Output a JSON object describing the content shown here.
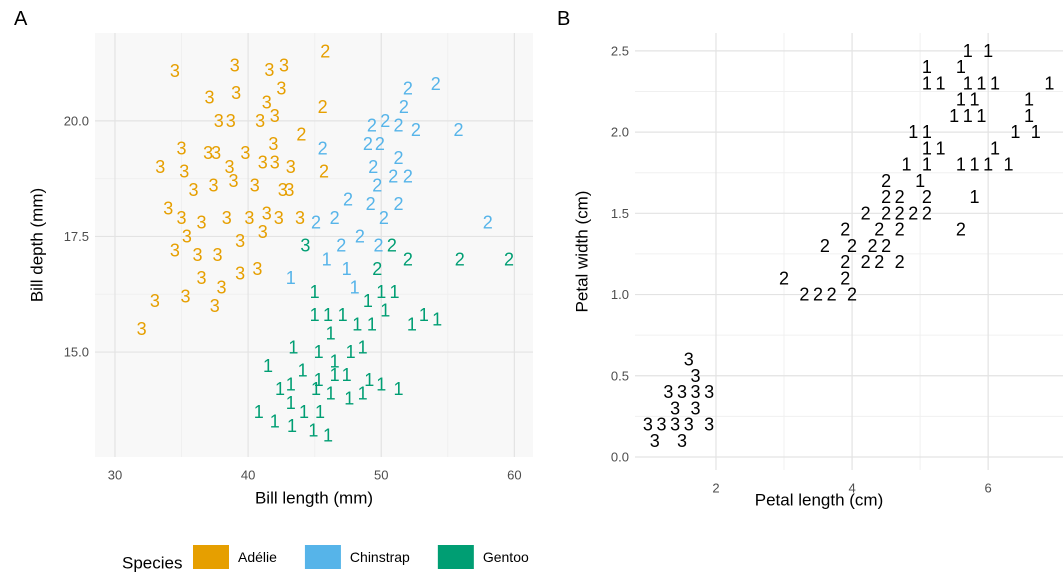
{
  "chart_data": [
    {
      "type": "scatter",
      "tag": "A",
      "xlabel": "Bill length (mm)",
      "ylabel": "Bill depth (mm)",
      "xlim": [
        28.5,
        61.4
      ],
      "ylim": [
        12.73,
        21.9
      ],
      "xticks": [
        30,
        40,
        50,
        60
      ],
      "yticks": [
        {
          "value": 15,
          "label": "15.0"
        },
        17.5,
        {
          "value": 20,
          "label": "20.0"
        }
      ],
      "grid": true,
      "legend_title": "Species",
      "legend": "bottom",
      "series": [
        {
          "name": "Adélie",
          "color": "#E69F00",
          "x": [
            34.5,
            39.0,
            41.6,
            42.7,
            45.8,
            42.5,
            37.1,
            39.1,
            45.6,
            41.4,
            42.0,
            37.8,
            38.7,
            40.9,
            44.0,
            35.0,
            37.0,
            37.6,
            39.8,
            41.9,
            33.4,
            35.2,
            38.6,
            41.1,
            42.0,
            43.2,
            45.7,
            35.9,
            37.4,
            38.9,
            40.5,
            42.6,
            43.1,
            34.0,
            35.0,
            36.5,
            38.4,
            40.1,
            41.4,
            42.3,
            43.9,
            35.4,
            34.5,
            39.4,
            41.1,
            36.2,
            37.7,
            40.7,
            39.4,
            36.5,
            38.0,
            35.3,
            37.5,
            33.0,
            32.0
          ],
          "y": [
            21.08,
            21.2,
            21.1,
            21.2,
            21.5,
            20.7,
            20.5,
            20.6,
            20.3,
            20.4,
            20.1,
            20.0,
            20.0,
            20.0,
            19.7,
            19.4,
            19.3,
            19.3,
            19.3,
            19.5,
            19.0,
            18.9,
            19.0,
            19.1,
            19.1,
            19.0,
            18.9,
            18.5,
            18.6,
            18.7,
            18.6,
            18.5,
            18.5,
            18.1,
            17.9,
            17.8,
            17.9,
            17.9,
            18.0,
            17.9,
            17.9,
            17.5,
            17.2,
            17.4,
            17.6,
            17.1,
            17.1,
            16.8,
            16.7,
            16.6,
            16.4,
            16.2,
            16.0,
            16.1,
            15.5
          ],
          "labels": [
            "3",
            "3",
            "3",
            "3",
            "2",
            "3",
            "3",
            "3",
            "2",
            "3",
            "3",
            "3",
            "3",
            "3",
            "2",
            "3",
            "3",
            "3",
            "3",
            "3",
            "3",
            "3",
            "3",
            "3",
            "3",
            "3",
            "2",
            "3",
            "3",
            "3",
            "3",
            "3",
            "3",
            "3",
            "3",
            "3",
            "3",
            "3",
            "3",
            "3",
            "3",
            "3",
            "3",
            "3",
            "3",
            "3",
            "3",
            "3",
            "3",
            "3",
            "3",
            "3",
            "3",
            "3",
            "3"
          ]
        },
        {
          "name": "Chinstrap",
          "color": "#56B4E9",
          "x": [
            52.0,
            54.1,
            51.7,
            49.3,
            50.3,
            51.3,
            52.6,
            55.8,
            49.0,
            49.9,
            45.6,
            51.3,
            49.4,
            50.9,
            52.0,
            49.7,
            47.5,
            49.2,
            51.3,
            46.5,
            45.1,
            50.2,
            58.0,
            48.4,
            47.0,
            49.8,
            45.9,
            43.2,
            47.4,
            48.0
          ],
          "y": [
            20.7,
            20.8,
            20.3,
            19.9,
            20.0,
            19.9,
            19.8,
            19.8,
            19.5,
            19.5,
            19.4,
            19.2,
            19.0,
            18.8,
            18.8,
            18.6,
            18.3,
            18.2,
            18.2,
            17.9,
            17.8,
            17.9,
            17.8,
            17.5,
            17.3,
            17.3,
            17.0,
            16.6,
            16.8,
            16.4
          ],
          "labels": [
            "2",
            "2",
            "2",
            "2",
            "2",
            "2",
            "2",
            "2",
            "2",
            "2",
            "2",
            "2",
            "2",
            "2",
            "2",
            "2",
            "2",
            "2",
            "2",
            "2",
            "2",
            "2",
            "2",
            "2",
            "2",
            "2",
            "1",
            "1",
            "1",
            "1"
          ]
        },
        {
          "name": "Gentoo",
          "color": "#009E73",
          "x": [
            44.3,
            50.8,
            52.0,
            55.9,
            59.6,
            49.7,
            45.0,
            50.0,
            51.0,
            49.0,
            45.0,
            46.0,
            47.1,
            50.3,
            53.2,
            54.2,
            52.3,
            48.2,
            49.3,
            46.2,
            43.4,
            45.3,
            47.7,
            48.6,
            46.5,
            41.5,
            44.1,
            45.3,
            46.5,
            47.4,
            49.1,
            42.4,
            43.2,
            45.1,
            46.2,
            47.6,
            48.6,
            50.0,
            51.3,
            43.2,
            45.4,
            40.8,
            42.0,
            43.3,
            44.9,
            46.0,
            44.2
          ],
          "y": [
            17.3,
            17.3,
            17.0,
            17.0,
            17.0,
            16.8,
            16.3,
            16.3,
            16.3,
            16.1,
            15.8,
            15.8,
            15.8,
            15.9,
            15.8,
            15.7,
            15.6,
            15.6,
            15.6,
            15.4,
            15.1,
            15.0,
            15.0,
            15.1,
            14.8,
            14.7,
            14.6,
            14.4,
            14.5,
            14.5,
            14.4,
            14.2,
            14.3,
            14.2,
            14.1,
            14.0,
            14.1,
            14.3,
            14.2,
            13.9,
            13.7,
            13.7,
            13.5,
            13.4,
            13.3,
            13.2,
            13.7
          ],
          "labels": [
            "3",
            "2",
            "2",
            "2",
            "2",
            "2",
            "1",
            "1",
            "1",
            "1",
            "1",
            "1",
            "1",
            "1",
            "1",
            "1",
            "1",
            "1",
            "1",
            "1",
            "1",
            "1",
            "1",
            "1",
            "1",
            "1",
            "1",
            "1",
            "1",
            "1",
            "1",
            "1",
            "1",
            "1",
            "1",
            "1",
            "1",
            "1",
            "1",
            "1",
            "1",
            "1",
            "1",
            "1",
            "1",
            "1",
            "1"
          ]
        }
      ]
    },
    {
      "type": "scatter",
      "tag": "B",
      "xlabel": "Petal length (cm)",
      "ylabel": "Petal width (cm)",
      "xlim": [
        0.81,
        7.1
      ],
      "ylim": [
        -0.08,
        2.61
      ],
      "xticks": [
        2,
        4,
        6
      ],
      "yticks": [
        {
          "value": 0,
          "label": "0.0"
        },
        0.5,
        {
          "value": 1,
          "label": "1.0"
        },
        1.5,
        {
          "value": 2,
          "label": "2.0"
        },
        2.5
      ],
      "grid": true,
      "series": [
        {
          "color": "#000000",
          "x": [
            5.7,
            6.0,
            5.1,
            5.6,
            5.1,
            5.3,
            5.7,
            5.9,
            6.1,
            6.9,
            5.6,
            5.8,
            6.6,
            5.5,
            5.7,
            5.9,
            6.6,
            4.9,
            5.1,
            6.4,
            6.7,
            5.1,
            5.3,
            6.1,
            4.8,
            5.1,
            5.6,
            5.8,
            6.0,
            6.3,
            5.0,
            5.8,
            4.5,
            4.5,
            4.7,
            5.1,
            4.2,
            4.5,
            4.7,
            4.9,
            5.1,
            3.9,
            4.4,
            4.7,
            5.6,
            3.6,
            4.0,
            4.3,
            4.5,
            3.9,
            4.2,
            4.4,
            4.7,
            3.9,
            3.0,
            3.3,
            3.5,
            3.7,
            4.0,
            1.6,
            1.7,
            1.3,
            1.5,
            1.7,
            1.9,
            1.4,
            1.7,
            1.0,
            1.2,
            1.4,
            1.6,
            1.9,
            1.1,
            1.5
          ],
          "y": [
            2.5,
            2.5,
            2.4,
            2.4,
            2.3,
            2.3,
            2.3,
            2.3,
            2.3,
            2.3,
            2.2,
            2.2,
            2.2,
            2.1,
            2.1,
            2.1,
            2.1,
            2.0,
            2.0,
            2.0,
            2.0,
            1.9,
            1.9,
            1.9,
            1.8,
            1.8,
            1.8,
            1.8,
            1.8,
            1.8,
            1.7,
            1.6,
            1.7,
            1.6,
            1.6,
            1.6,
            1.5,
            1.5,
            1.5,
            1.5,
            1.5,
            1.4,
            1.4,
            1.4,
            1.4,
            1.3,
            1.3,
            1.3,
            1.3,
            1.2,
            1.2,
            1.2,
            1.2,
            1.1,
            1.1,
            1.0,
            1.0,
            1.0,
            1.0,
            0.6,
            0.5,
            0.4,
            0.4,
            0.4,
            0.4,
            0.3,
            0.3,
            0.2,
            0.2,
            0.2,
            0.2,
            0.2,
            0.1,
            0.1
          ],
          "labels": [
            "1",
            "1",
            "1",
            "1",
            "1",
            "1",
            "1",
            "1",
            "1",
            "1",
            "1",
            "1",
            "1",
            "1",
            "1",
            "1",
            "1",
            "1",
            "1",
            "1",
            "1",
            "1",
            "1",
            "1",
            "1",
            "1",
            "1",
            "1",
            "1",
            "1",
            "1",
            "1",
            "2",
            "2",
            "2",
            "2",
            "2",
            "2",
            "2",
            "2",
            "2",
            "2",
            "2",
            "2",
            "2",
            "2",
            "2",
            "2",
            "2",
            "2",
            "2",
            "2",
            "2",
            "2",
            "2",
            "2",
            "2",
            "2",
            "2",
            "3",
            "3",
            "3",
            "3",
            "3",
            "3",
            "3",
            "3",
            "3",
            "3",
            "3",
            "3",
            "3",
            "3",
            "3"
          ]
        }
      ]
    }
  ]
}
